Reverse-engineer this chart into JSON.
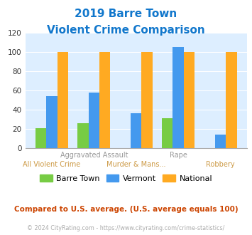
{
  "title_line1": "2019 Barre Town",
  "title_line2": "Violent Crime Comparison",
  "categories": [
    "All Violent Crime",
    "Aggravated Assault",
    "Murder & Mans...",
    "Rape",
    "Robbery"
  ],
  "x_labels_top": [
    "",
    "Aggravated Assault",
    "",
    "Rape",
    ""
  ],
  "x_labels_bottom": [
    "All Violent Crime",
    "",
    "Murder & Mans...",
    "",
    "Robbery"
  ],
  "barre_town": [
    21,
    26,
    0,
    31,
    0
  ],
  "vermont": [
    54,
    58,
    36,
    105,
    14
  ],
  "national": [
    100,
    100,
    100,
    100,
    100
  ],
  "bar_colors": {
    "barre_town": "#77cc44",
    "vermont": "#4499ee",
    "national": "#ffaa22"
  },
  "ylim": [
    0,
    120
  ],
  "yticks": [
    0,
    20,
    40,
    60,
    80,
    100,
    120
  ],
  "plot_bg": "#ddeeff",
  "title_color": "#1177cc",
  "xlabel_top_color": "#999999",
  "xlabel_bottom_color": "#cc9944",
  "legend_labels": [
    "Barre Town",
    "Vermont",
    "National"
  ],
  "footer_text": "Compared to U.S. average. (U.S. average equals 100)",
  "copyright_text": "© 2024 CityRating.com - https://www.cityrating.com/crime-statistics/",
  "footer_color": "#cc4400",
  "copyright_color": "#aaaaaa"
}
